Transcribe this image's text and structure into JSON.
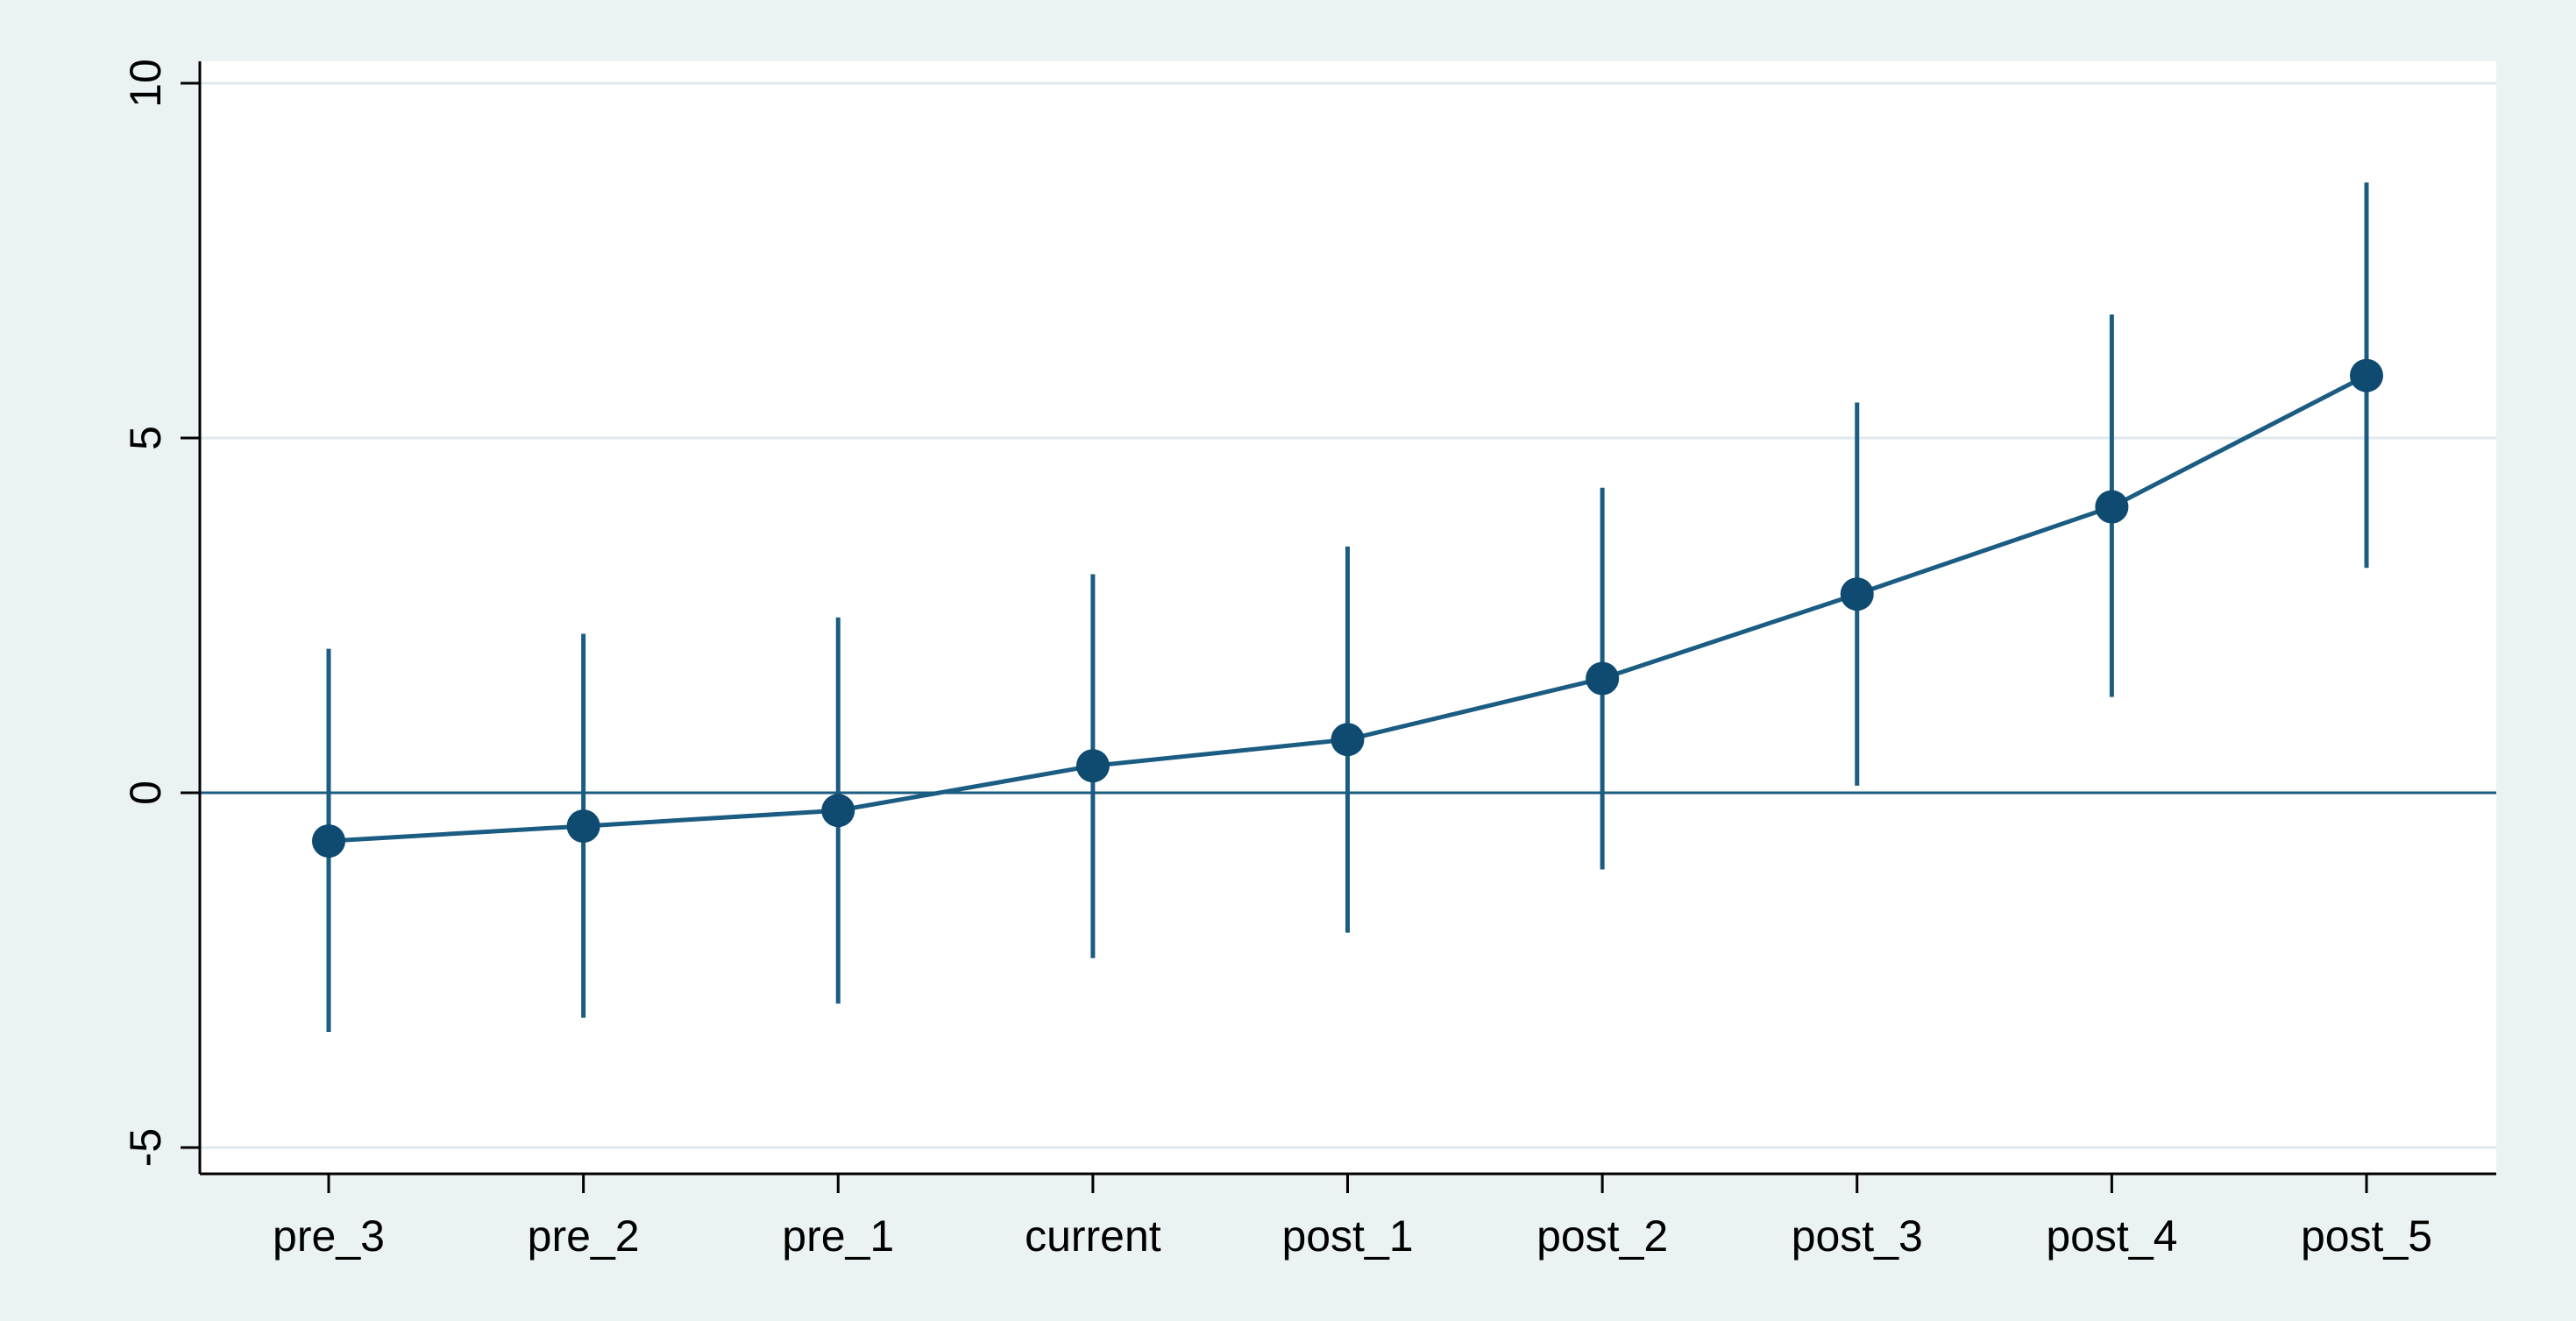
{
  "chart_data": {
    "type": "scatter",
    "title": "",
    "xlabel": "",
    "ylabel": "",
    "categories": [
      "pre_3",
      "pre_2",
      "pre_1",
      "current",
      "post_1",
      "post_2",
      "post_3",
      "post_4",
      "post_5"
    ],
    "series": [
      {
        "values": [
          -0.68,
          -0.47,
          -0.25,
          0.38,
          0.75,
          1.61,
          2.8,
          4.03,
          5.88
        ],
        "ci_lower": [
          -3.37,
          -3.17,
          -2.97,
          -2.33,
          -1.97,
          -1.08,
          0.1,
          1.35,
          3.17
        ],
        "ci_upper": [
          2.03,
          2.24,
          2.47,
          3.08,
          3.47,
          4.3,
          5.5,
          6.74,
          8.6
        ]
      }
    ],
    "ylim": [
      -5.4,
      10.3
    ],
    "yticks": [
      -5,
      0,
      5,
      10
    ],
    "reference_line_y": 0,
    "grid": true,
    "legend": "none",
    "colors": {
      "marker": "#0f4a70",
      "line": "#1b5c82",
      "grid": "#dfe9ec",
      "plot_bg": "#ffffff",
      "outer_bg": "#eaf2f3",
      "axis": "#000000"
    }
  }
}
